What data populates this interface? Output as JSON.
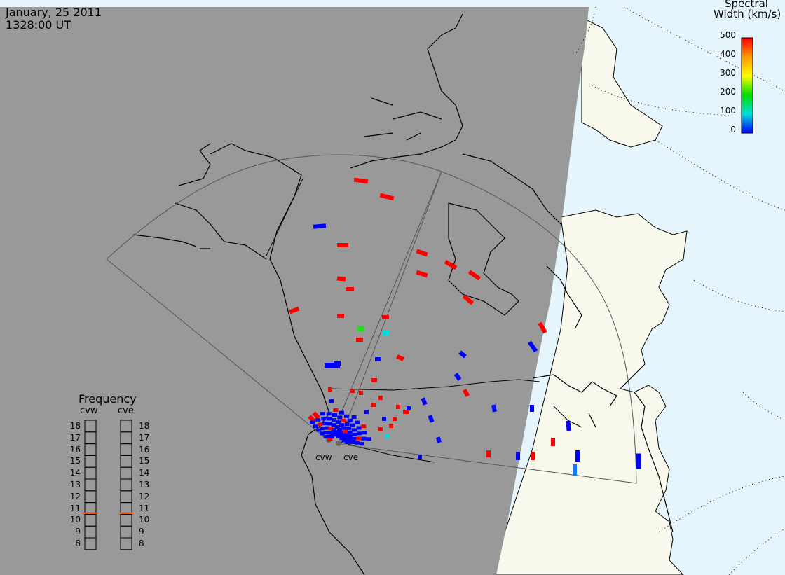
{
  "header": {
    "date": "January, 25 2011",
    "time": "1328:00 UT"
  },
  "colorbar": {
    "title_line1": "Spectral",
    "title_line2": "Width (km/s)",
    "ticks": [
      "500",
      "400",
      "300",
      "200",
      "100",
      "0"
    ],
    "colors": [
      "#ff0000",
      "#ff9900",
      "#ffff00",
      "#00dd00",
      "#00dddd",
      "#0000ff"
    ]
  },
  "frequency_panel": {
    "title": "Frequency",
    "radars": [
      {
        "label": "cvw",
        "value_mhz": 10.6
      },
      {
        "label": "cve",
        "value_mhz": 10.6
      }
    ],
    "scale": [
      "18",
      "17",
      "16",
      "15",
      "14",
      "13",
      "12",
      "11",
      "10",
      "9",
      "8"
    ],
    "marker_color": "#ff5500"
  },
  "radar_sites": [
    {
      "label": "cvw"
    },
    {
      "label": "cve"
    }
  ],
  "colors": {
    "night_shade": "#999999",
    "day_land": "#f8f8ec",
    "day_ocean": "#e6f4fb",
    "coastline": "#000000",
    "fov_outline": "#555555"
  }
}
